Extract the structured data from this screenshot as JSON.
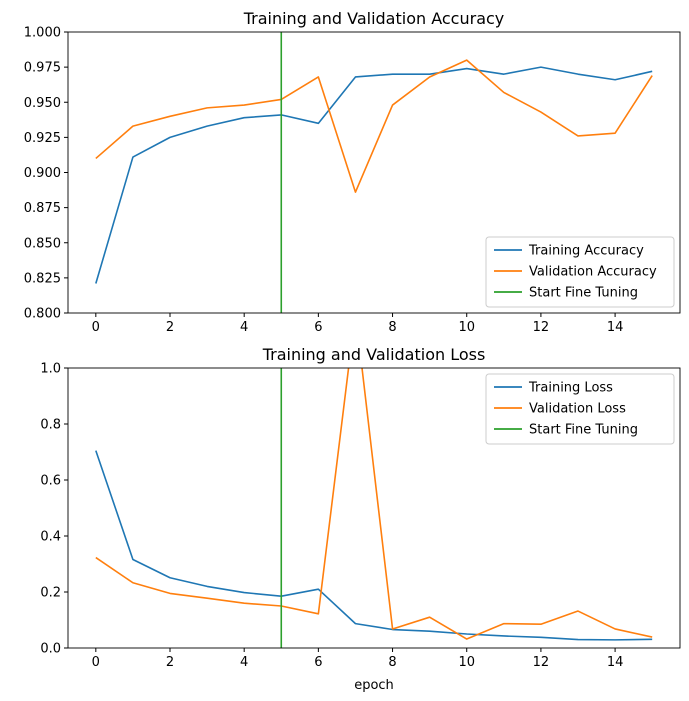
{
  "chart_data": [
    {
      "type": "line",
      "title": "Training and Validation Accuracy",
      "xlabel": "",
      "ylabel": "",
      "xlim": [
        -0.75,
        15.75
      ],
      "ylim": [
        0.8,
        1.0
      ],
      "xticks": [
        "0",
        "2",
        "4",
        "6",
        "8",
        "10",
        "12",
        "14"
      ],
      "yticks": [
        "0.800",
        "0.825",
        "0.850",
        "0.875",
        "0.900",
        "0.925",
        "0.950",
        "0.975",
        "1.000"
      ],
      "grid": false,
      "legend_position": "lower right",
      "x": [
        0,
        1,
        2,
        3,
        4,
        5,
        6,
        7,
        8,
        9,
        10,
        11,
        12,
        13,
        14,
        15
      ],
      "series": [
        {
          "name": "Training Accuracy",
          "color": "#1f77b4",
          "values": [
            0.821,
            0.911,
            0.925,
            0.933,
            0.939,
            0.941,
            0.935,
            0.968,
            0.97,
            0.97,
            0.974,
            0.97,
            0.975,
            0.97,
            0.966,
            0.972
          ]
        },
        {
          "name": "Validation Accuracy",
          "color": "#ff7f0e",
          "values": [
            0.91,
            0.933,
            0.94,
            0.946,
            0.948,
            0.952,
            0.968,
            0.886,
            0.948,
            0.968,
            0.98,
            0.957,
            0.943,
            0.926,
            0.928,
            0.969
          ]
        },
        {
          "name": "Start Fine Tuning",
          "color": "#2ca02c",
          "kind": "vertical_line",
          "x_value": 5
        }
      ]
    },
    {
      "type": "line",
      "title": "Training and Validation Loss",
      "xlabel": "epoch",
      "ylabel": "",
      "xlim": [
        -0.75,
        15.75
      ],
      "ylim": [
        0.0,
        1.0
      ],
      "xticks": [
        "0",
        "2",
        "4",
        "6",
        "8",
        "10",
        "12",
        "14"
      ],
      "yticks": [
        "0.0",
        "0.2",
        "0.4",
        "0.6",
        "0.8",
        "1.0"
      ],
      "grid": false,
      "legend_position": "upper right",
      "x": [
        0,
        1,
        2,
        3,
        4,
        5,
        6,
        7,
        8,
        9,
        10,
        11,
        12,
        13,
        14,
        15
      ],
      "series": [
        {
          "name": "Training Loss",
          "color": "#1f77b4",
          "values": [
            0.705,
            0.316,
            0.251,
            0.22,
            0.198,
            0.185,
            0.21,
            0.087,
            0.066,
            0.06,
            0.05,
            0.043,
            0.038,
            0.03,
            0.029,
            0.031
          ]
        },
        {
          "name": "Validation Loss",
          "color": "#ff7f0e",
          "values": [
            0.323,
            0.233,
            0.195,
            0.178,
            0.16,
            0.15,
            0.122,
            1.2,
            0.068,
            0.11,
            0.032,
            0.087,
            0.085,
            0.132,
            0.068,
            0.039
          ]
        },
        {
          "name": "Start Fine Tuning",
          "color": "#2ca02c",
          "kind": "vertical_line",
          "x_value": 5
        }
      ]
    }
  ]
}
